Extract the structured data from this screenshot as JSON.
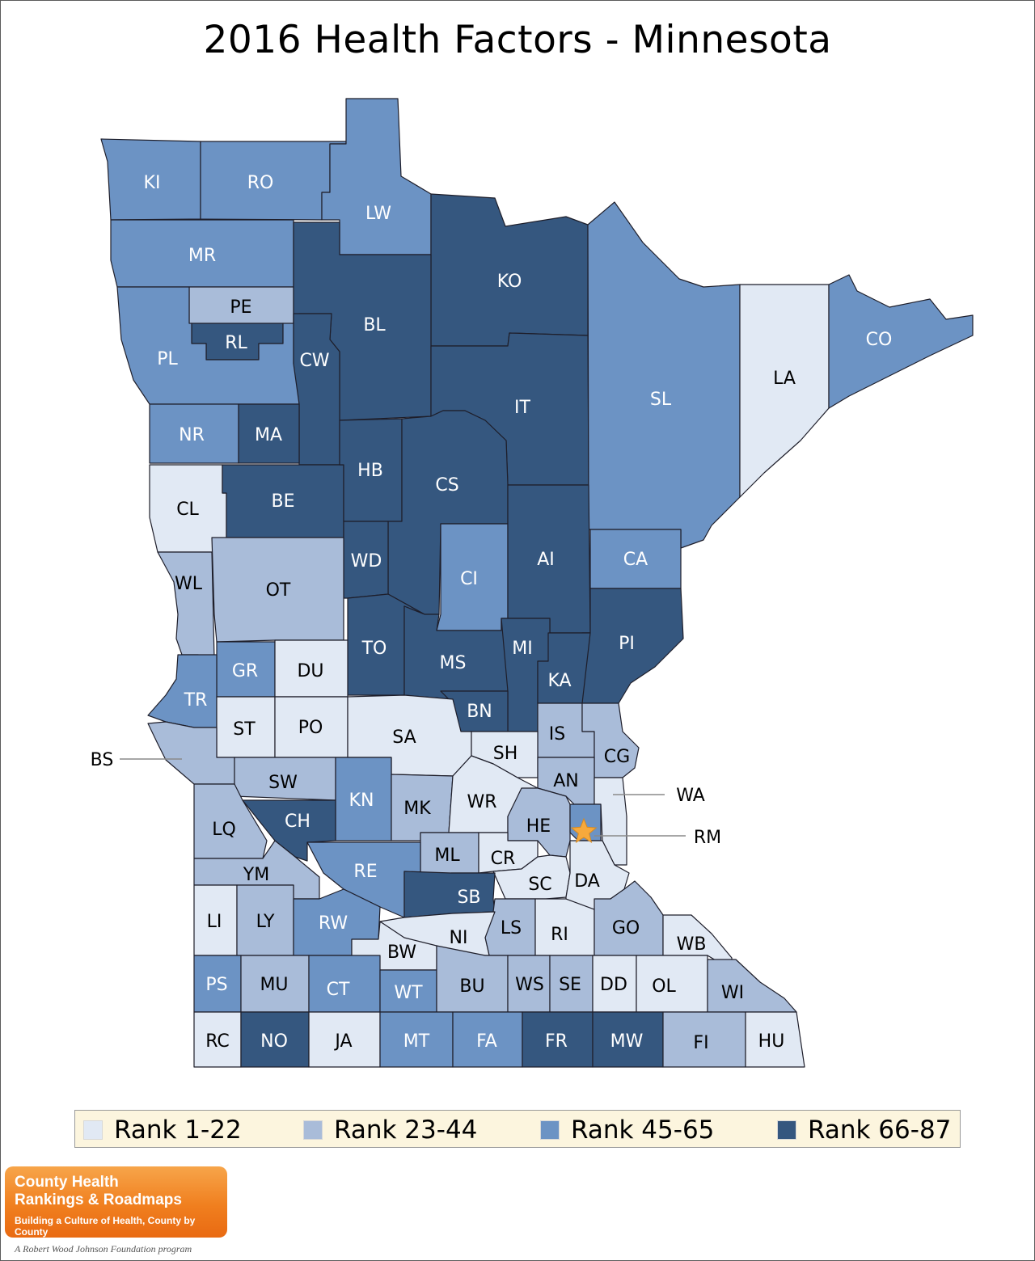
{
  "title": "2016 Health Factors - Minnesota",
  "colors": {
    "rank_1_22": "#e1e9f4",
    "rank_23_44": "#a9bcd9",
    "rank_45_65": "#6c93c4",
    "rank_66_87": "#35577f",
    "outline": "#1e1e2a",
    "star": "#f6a93c"
  },
  "legend": [
    {
      "label": "Rank 1-22",
      "class": "rank_1_22"
    },
    {
      "label": "Rank 23-44",
      "class": "rank_23_44"
    },
    {
      "label": "Rank 45-65",
      "class": "rank_45_65"
    },
    {
      "label": "Rank 66-87",
      "class": "rank_66_87"
    }
  ],
  "counties": [
    {
      "abbr": "KI",
      "rank": "rank_45_65"
    },
    {
      "abbr": "RO",
      "rank": "rank_45_65"
    },
    {
      "abbr": "LW",
      "rank": "rank_45_65"
    },
    {
      "abbr": "MR",
      "rank": "rank_45_65"
    },
    {
      "abbr": "PE",
      "rank": "rank_23_44"
    },
    {
      "abbr": "RL",
      "rank": "rank_66_87"
    },
    {
      "abbr": "PL",
      "rank": "rank_45_65"
    },
    {
      "abbr": "KO",
      "rank": "rank_66_87"
    },
    {
      "abbr": "BL",
      "rank": "rank_66_87"
    },
    {
      "abbr": "CW",
      "rank": "rank_66_87"
    },
    {
      "abbr": "IT",
      "rank": "rank_66_87"
    },
    {
      "abbr": "SL",
      "rank": "rank_45_65"
    },
    {
      "abbr": "LA",
      "rank": "rank_1_22"
    },
    {
      "abbr": "CO",
      "rank": "rank_45_65"
    },
    {
      "abbr": "NR",
      "rank": "rank_45_65"
    },
    {
      "abbr": "MA",
      "rank": "rank_66_87"
    },
    {
      "abbr": "CL",
      "rank": "rank_1_22"
    },
    {
      "abbr": "BE",
      "rank": "rank_66_87"
    },
    {
      "abbr": "HB",
      "rank": "rank_66_87"
    },
    {
      "abbr": "CS",
      "rank": "rank_66_87"
    },
    {
      "abbr": "WD",
      "rank": "rank_66_87"
    },
    {
      "abbr": "CI",
      "rank": "rank_45_65"
    },
    {
      "abbr": "AI",
      "rank": "rank_66_87"
    },
    {
      "abbr": "CA",
      "rank": "rank_45_65"
    },
    {
      "abbr": "WL",
      "rank": "rank_23_44"
    },
    {
      "abbr": "OT",
      "rank": "rank_23_44"
    },
    {
      "abbr": "PI",
      "rank": "rank_66_87"
    },
    {
      "abbr": "TO",
      "rank": "rank_66_87"
    },
    {
      "abbr": "MS",
      "rank": "rank_66_87"
    },
    {
      "abbr": "MI",
      "rank": "rank_66_87"
    },
    {
      "abbr": "KA",
      "rank": "rank_66_87"
    },
    {
      "abbr": "GR",
      "rank": "rank_45_65"
    },
    {
      "abbr": "DU",
      "rank": "rank_1_22"
    },
    {
      "abbr": "TR",
      "rank": "rank_45_65"
    },
    {
      "abbr": "BN",
      "rank": "rank_66_87"
    },
    {
      "abbr": "ST",
      "rank": "rank_1_22"
    },
    {
      "abbr": "PO",
      "rank": "rank_1_22"
    },
    {
      "abbr": "SA",
      "rank": "rank_1_22"
    },
    {
      "abbr": "IS",
      "rank": "rank_23_44"
    },
    {
      "abbr": "SH",
      "rank": "rank_1_22"
    },
    {
      "abbr": "CG",
      "rank": "rank_23_44"
    },
    {
      "abbr": "BS",
      "rank": "rank_23_44"
    },
    {
      "abbr": "SW",
      "rank": "rank_23_44"
    },
    {
      "abbr": "KN",
      "rank": "rank_45_65"
    },
    {
      "abbr": "MK",
      "rank": "rank_23_44"
    },
    {
      "abbr": "WR",
      "rank": "rank_1_22"
    },
    {
      "abbr": "AN",
      "rank": "rank_23_44"
    },
    {
      "abbr": "WA",
      "rank": "rank_1_22"
    },
    {
      "abbr": "LQ",
      "rank": "rank_23_44"
    },
    {
      "abbr": "CH",
      "rank": "rank_66_87"
    },
    {
      "abbr": "HE",
      "rank": "rank_23_44"
    },
    {
      "abbr": "RM",
      "rank": "rank_45_65"
    },
    {
      "abbr": "ML",
      "rank": "rank_23_44"
    },
    {
      "abbr": "CR",
      "rank": "rank_1_22"
    },
    {
      "abbr": "YM",
      "rank": "rank_23_44"
    },
    {
      "abbr": "RE",
      "rank": "rank_45_65"
    },
    {
      "abbr": "SC",
      "rank": "rank_1_22"
    },
    {
      "abbr": "DA",
      "rank": "rank_1_22"
    },
    {
      "abbr": "SB",
      "rank": "rank_66_87"
    },
    {
      "abbr": "LI",
      "rank": "rank_1_22"
    },
    {
      "abbr": "LY",
      "rank": "rank_23_44"
    },
    {
      "abbr": "RW",
      "rank": "rank_45_65"
    },
    {
      "abbr": "LS",
      "rank": "rank_23_44"
    },
    {
      "abbr": "RI",
      "rank": "rank_1_22"
    },
    {
      "abbr": "GO",
      "rank": "rank_23_44"
    },
    {
      "abbr": "NI",
      "rank": "rank_1_22"
    },
    {
      "abbr": "WB",
      "rank": "rank_1_22"
    },
    {
      "abbr": "BW",
      "rank": "rank_1_22"
    },
    {
      "abbr": "PS",
      "rank": "rank_45_65"
    },
    {
      "abbr": "MU",
      "rank": "rank_23_44"
    },
    {
      "abbr": "CT",
      "rank": "rank_45_65"
    },
    {
      "abbr": "WT",
      "rank": "rank_45_65"
    },
    {
      "abbr": "BU",
      "rank": "rank_23_44"
    },
    {
      "abbr": "WS",
      "rank": "rank_23_44"
    },
    {
      "abbr": "SE",
      "rank": "rank_23_44"
    },
    {
      "abbr": "DD",
      "rank": "rank_1_22"
    },
    {
      "abbr": "OL",
      "rank": "rank_1_22"
    },
    {
      "abbr": "WI",
      "rank": "rank_23_44"
    },
    {
      "abbr": "RC",
      "rank": "rank_1_22"
    },
    {
      "abbr": "NO",
      "rank": "rank_66_87"
    },
    {
      "abbr": "JA",
      "rank": "rank_1_22"
    },
    {
      "abbr": "MT",
      "rank": "rank_45_65"
    },
    {
      "abbr": "FA",
      "rank": "rank_45_65"
    },
    {
      "abbr": "FR",
      "rank": "rank_66_87"
    },
    {
      "abbr": "MW",
      "rank": "rank_66_87"
    },
    {
      "abbr": "FI",
      "rank": "rank_23_44"
    },
    {
      "abbr": "HU",
      "rank": "rank_1_22"
    }
  ],
  "logo": {
    "line1": "County Health",
    "line2": "Rankings & Roadmaps",
    "line3": "Building a Culture of Health, County by County",
    "sub": "A Robert Wood Johnson Foundation program"
  }
}
